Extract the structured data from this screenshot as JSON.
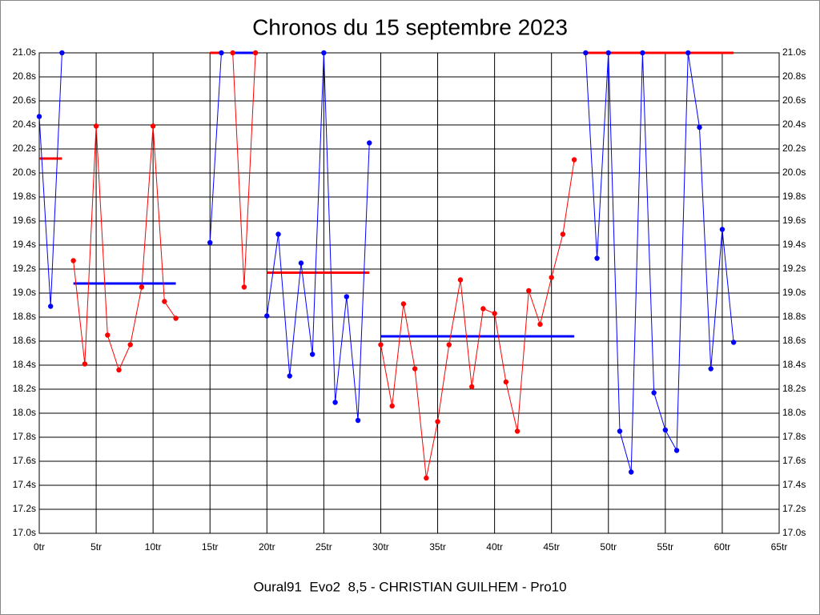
{
  "chart_data": {
    "type": "line",
    "title": "Chronos du 15 septembre 2023",
    "subtitle": "Oural91  Evo2  8,5 - CHRISTIAN GUILHEM - Pro10",
    "xlim": [
      0,
      65
    ],
    "ylim": [
      17.0,
      21.0
    ],
    "grid": true,
    "xticks": [
      {
        "value": 0,
        "label": "0tr"
      },
      {
        "value": 5,
        "label": "5tr"
      },
      {
        "value": 10,
        "label": "10tr"
      },
      {
        "value": 15,
        "label": "15tr"
      },
      {
        "value": 20,
        "label": "20tr"
      },
      {
        "value": 25,
        "label": "25tr"
      },
      {
        "value": 30,
        "label": "30tr"
      },
      {
        "value": 35,
        "label": "35tr"
      },
      {
        "value": 40,
        "label": "40tr"
      },
      {
        "value": 45,
        "label": "45tr"
      },
      {
        "value": 50,
        "label": "50tr"
      },
      {
        "value": 55,
        "label": "55tr"
      },
      {
        "value": 60,
        "label": "60tr"
      },
      {
        "value": 65,
        "label": "65tr"
      }
    ],
    "yticks": [
      {
        "value": 17.0,
        "label": "17.0s"
      },
      {
        "value": 17.2,
        "label": "17.2s"
      },
      {
        "value": 17.4,
        "label": "17.4s"
      },
      {
        "value": 17.6,
        "label": "17.6s"
      },
      {
        "value": 17.8,
        "label": "17.8s"
      },
      {
        "value": 18.0,
        "label": "18.0s"
      },
      {
        "value": 18.2,
        "label": "18.2s"
      },
      {
        "value": 18.4,
        "label": "18.4s"
      },
      {
        "value": 18.6,
        "label": "18.6s"
      },
      {
        "value": 18.8,
        "label": "18.8s"
      },
      {
        "value": 19.0,
        "label": "19.0s"
      },
      {
        "value": 19.2,
        "label": "19.2s"
      },
      {
        "value": 19.4,
        "label": "19.4s"
      },
      {
        "value": 19.6,
        "label": "19.6s"
      },
      {
        "value": 19.8,
        "label": "19.8s"
      },
      {
        "value": 20.0,
        "label": "20.0s"
      },
      {
        "value": 20.2,
        "label": "20.2s"
      },
      {
        "value": 20.4,
        "label": "20.4s"
      },
      {
        "value": 20.6,
        "label": "20.6s"
      },
      {
        "value": 20.8,
        "label": "20.8s"
      },
      {
        "value": 21.0,
        "label": "21.0s"
      }
    ],
    "series": [
      {
        "color": "#0000ff",
        "average_color": "#ff0000",
        "x": [
          0,
          1,
          2
        ],
        "values": [
          20.47,
          18.89,
          21.0
        ],
        "average": 20.12
      },
      {
        "color": "#ff0000",
        "average_color": "#0000ff",
        "x": [
          3,
          4,
          5,
          6,
          7,
          8,
          9,
          10,
          11,
          12
        ],
        "values": [
          19.27,
          18.41,
          20.39,
          18.65,
          18.36,
          18.57,
          19.05,
          20.39,
          18.93,
          18.79
        ],
        "average": 19.08
      },
      {
        "color": "#0000ff",
        "average_color": "#ff0000",
        "x": [
          15,
          16
        ],
        "values": [
          19.42,
          21.0
        ],
        "average": 21.0
      },
      {
        "color": "#ff0000",
        "average_color": "#0000ff",
        "x": [
          17,
          18,
          19
        ],
        "values": [
          21.0,
          19.05,
          21.0
        ],
        "average": 21.0
      },
      {
        "color": "#0000ff",
        "average_color": "#ff0000",
        "x": [
          20,
          21,
          22,
          23,
          24,
          25,
          26,
          27,
          28,
          29
        ],
        "values": [
          18.81,
          19.49,
          18.31,
          19.25,
          18.49,
          21.0,
          18.09,
          18.97,
          17.94,
          20.25
        ],
        "average": 19.17
      },
      {
        "color": "#ff0000",
        "average_color": "#0000ff",
        "x": [
          30,
          31,
          32,
          33,
          34,
          35,
          36,
          37,
          38,
          39,
          40,
          41,
          42,
          43,
          44,
          45,
          46,
          47
        ],
        "values": [
          18.57,
          18.06,
          18.91,
          18.37,
          17.46,
          17.93,
          18.57,
          19.11,
          18.22,
          18.87,
          18.83,
          18.26,
          17.85,
          19.02,
          18.74,
          19.13,
          19.49,
          20.11
        ],
        "average": 18.64
      },
      {
        "color": "#0000ff",
        "average_color": "#ff0000",
        "x": [
          48,
          49,
          50,
          51,
          52,
          53,
          54,
          55,
          56,
          57,
          58,
          59,
          60,
          61
        ],
        "values": [
          21.0,
          19.29,
          21.0,
          17.85,
          17.51,
          21.0,
          18.17,
          17.86,
          17.69,
          21.0,
          20.38,
          18.37,
          19.53,
          18.59
        ],
        "average": 21.0
      }
    ]
  }
}
